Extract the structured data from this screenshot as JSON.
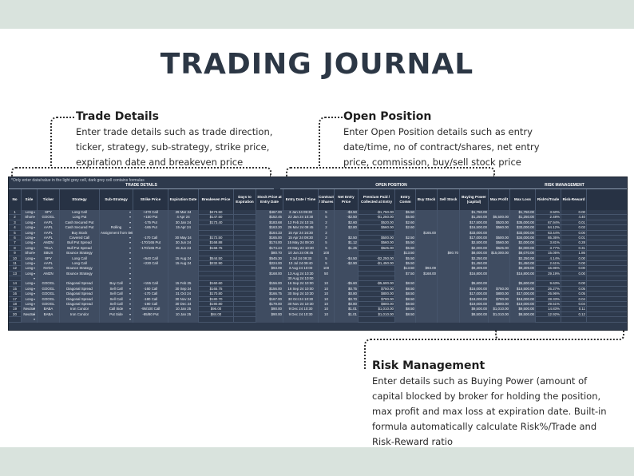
{
  "title": "TRADING JOURNAL",
  "callouts": {
    "trade_details": {
      "heading": "Trade Details",
      "lines": [
        "Enter trade details such as trade direction,",
        "ticker, strategy, sub-strategy, strike price,",
        "expiration date and breakeven price"
      ]
    },
    "open_position": {
      "heading": "Open Position",
      "lines": [
        "Enter Open Position details such as entry",
        "date/time, no of contract/shares, net entry",
        "price, commission, buy/sell stock price"
      ]
    },
    "risk_management": {
      "heading": "Risk Management",
      "lines": [
        "Enter details such as Buying Power (amount of",
        "capital blocked by broker for holding the position,",
        "max profit and max loss at expiration date.  Built-in",
        "formula automatically calculate Risk%/Trade and",
        "Risk-Reward ratio"
      ]
    }
  },
  "sheet": {
    "note": "*Only enter data/value in the light grey cell, dark grey cell contains formulas",
    "groups": [
      "TRADE DETAILS",
      "OPEN POSITION",
      "RISK MANAGEMENT"
    ],
    "headers": [
      "No",
      "Side",
      "Ticker",
      "Strategy",
      "Sub-Strategy",
      "Strike Price",
      "Expiration Date",
      "Breakeven Price",
      "Days to Expiration",
      "Stock Price at Entry Date",
      "Entry Date / Time",
      "Contract / Shares",
      "Net Entry Price",
      "Premium Paid / Collected at Entry",
      "Entry Comm",
      "Buy Stock",
      "Sell Stock",
      "Buying Power (capital)",
      "Max Profit",
      "Max Loss",
      "Risk%/Trade",
      "Risk-Reward"
    ],
    "rows": [
      [
        "1",
        "Long",
        "SPY",
        "Long Call",
        "",
        "+470 Call",
        "29 Mar 24",
        "$473.50",
        "",
        "$467.00",
        "3 Jan 24 09:30",
        "5",
        "-$3.50",
        "-$1,750.00",
        "$5.50",
        "",
        "",
        "$1,750.00",
        "",
        "$1,750.00",
        "3.50%",
        "0.00"
      ],
      [
        "2",
        "Short",
        "GOOGL",
        "Long Put",
        "",
        "+150 Put",
        "4 Apr 24",
        "$147.50",
        "",
        "$152.45",
        "22 Jan 24 10:30",
        "5",
        "-$2.50",
        "-$1,250.00",
        "$5.50",
        "",
        "",
        "$1,250.00",
        "$5,500.00",
        "$1,250.00",
        "2.48%",
        "4.40"
      ],
      [
        "3",
        "Long",
        "AAPL",
        "Cash Secured Put",
        "",
        "-175 Put",
        "30 Jan 24",
        "$173.40",
        "",
        "$183.68",
        "12 Feb 24 10:15",
        "2",
        "$2.60",
        "$520.00",
        "$2.60",
        "",
        "",
        "$17,500.00",
        "$520.00",
        "$35,000.00",
        "67.94%",
        "0.01"
      ],
      [
        "4",
        "Long",
        "AAPL",
        "Cash Secured Put",
        "Rolling",
        "-165 Put",
        "15 Apr 24",
        "",
        "",
        "$163.20",
        "26 Mar 24 09:45",
        "2",
        "$2.80",
        "$560.00",
        "$2.60",
        "",
        "",
        "$16,500.00",
        "$560.00",
        "$33,000.00",
        "64.12%",
        "0.02"
      ],
      [
        "5",
        "Long",
        "AAPL",
        "Buy Stock",
        "Assignment from CSP",
        "",
        "",
        "",
        "",
        "$164.33",
        "15 Apr 24 16:30",
        "2",
        "",
        "",
        "",
        "$165.00",
        "",
        "$33,000.00",
        "",
        "$33,000.00",
        "63.44%",
        "0.00"
      ],
      [
        "6",
        "Long",
        "AAPL",
        "Covered Call",
        "",
        "-170 Call",
        "30 May 24",
        "$172.50",
        "",
        "$165.00",
        "15 Apr 24 09:30",
        "2",
        "$2.50",
        "$500.00",
        "$2.50",
        "",
        "",
        "$17,000.00",
        "$500.00",
        "$34,000.00",
        "65.36%",
        "0.01"
      ],
      [
        "7",
        "Long",
        "AMZN",
        "Bull Put Spread",
        "",
        "-170/165 Put",
        "30 Jun 24",
        "$168.88",
        "",
        "$174.00",
        "15 May 24 09:30",
        "5",
        "$1.12",
        "$560.00",
        "$5.50",
        "",
        "",
        "$2,500.00",
        "$560.00",
        "$2,000.00",
        "3.81%",
        "0.28"
      ],
      [
        "8",
        "Long",
        "TSLA",
        "Bull Put Spread",
        "",
        "-170/165 Put",
        "15 Jun 24",
        "$168.75",
        "",
        "$174.44",
        "20 May 24 10:30",
        "5",
        "$1.25",
        "$625.00",
        "$5.50",
        "",
        "",
        "$2,000.00",
        "$625.00",
        "$2,000.00",
        "3.77%",
        "0.31"
      ],
      [
        "9",
        "Short",
        "SBUX",
        "Bounce Strategy",
        "",
        "",
        "",
        "",
        "",
        "$80.70",
        "10 Jun 24 09:45",
        "100",
        "",
        "",
        "$13.50",
        "",
        "$80.70",
        "$8,000.00",
        "$15,000.00",
        "$8,070.00",
        "15.05%",
        "1.86"
      ],
      [
        "10",
        "Long",
        "SPY",
        "Long Call",
        "",
        "+540 Call",
        "15 Aug 24",
        "$544.50",
        "",
        "$545.30",
        "3 Jul 24 09:30",
        "5",
        "-$4.50",
        "-$2,250.00",
        "$5.50",
        "",
        "",
        "$2,250.00",
        "",
        "$2,250.00",
        "4.14%",
        "0.00"
      ],
      [
        "11",
        "Long",
        "AAPL",
        "Long Call",
        "",
        "+230 Call",
        "15 Aug 24",
        "$232.90",
        "",
        "$224.00",
        "10 Jul 24 09:40",
        "5",
        "-$2.90",
        "-$1,450.00",
        "$5.50",
        "",
        "",
        "$1,450.00",
        "",
        "$1,450.00",
        "2.61%",
        "0.00"
      ],
      [
        "12",
        "Long",
        "NVDA",
        "Bounce Strategy",
        "",
        "",
        "",
        "",
        "",
        "$93.09",
        "3 Aug 24 10:00",
        "100",
        "",
        "",
        "$13.50",
        "$93.09",
        "",
        "$9,309.00",
        "",
        "$9,309.00",
        "16.96%",
        "0.00"
      ],
      [
        "13",
        "Long",
        "AMZN",
        "Bounce Strategy",
        "",
        "",
        "",
        "",
        "",
        "$168.00",
        "13 Aug 24 10:30",
        "50",
        "",
        "",
        "$7.50",
        "$168.00",
        "",
        "$16,800.00",
        "",
        "$16,800.00",
        "29.19%",
        "0.00"
      ],
      [
        "",
        "",
        "",
        "",
        "",
        "",
        "",
        "",
        "",
        "",
        "30 Aug 24 10:00",
        "",
        "",
        "",
        "",
        "",
        "",
        "",
        "",
        "",
        "",
        ""
      ],
      [
        "14",
        "Long",
        "GOOGL",
        "Diagonal Spread",
        "Buy Call",
        "+155 Call",
        "15 Feb 25",
        "$160.60",
        "",
        "$156.00",
        "16 Sep 24 10:00",
        "10",
        "-$5.60",
        "-$5,600.00",
        "$8.50",
        "",
        "",
        "$5,600.00",
        "",
        "$5,600.00",
        "9.63%",
        "0.00"
      ],
      [
        "15",
        "Long",
        "GOOGL",
        "Diagonal Spread",
        "Sell Call",
        "-160 Call",
        "30 Sep 24",
        "$165.75",
        "",
        "$156.00",
        "16 Sep 24 10:00",
        "10",
        "$0.75",
        "$750.00",
        "$8.50",
        "",
        "",
        "$16,000.00",
        "$750.00",
        "$16,500.00",
        "26.27%",
        "0.05"
      ],
      [
        "16",
        "Long",
        "GOOGL",
        "Diagonal Spread",
        "Sell Call",
        "-170 Call",
        "31 Oct 24",
        "$170.80",
        "",
        "$166.75",
        "30 Sep 24 10:30",
        "10",
        "$0.80",
        "$800.00",
        "$8.50",
        "",
        "",
        "$17,000.00",
        "$800.00",
        "$17,000.00",
        "26.96%",
        "0.05"
      ],
      [
        "17",
        "Long",
        "GOOGL",
        "Diagonal Spread",
        "Sell Call",
        "-180 Call",
        "30 Nov 24",
        "$180.70",
        "",
        "$167.00",
        "30 Oct 24 10:30",
        "10",
        "$0.70",
        "$700.00",
        "$8.50",
        "",
        "",
        "$18,000.00",
        "$700.00",
        "$18,000.00",
        "28.33%",
        "0.04"
      ],
      [
        "18",
        "Long",
        "GOOGL",
        "Diagonal Spread",
        "Sell Call",
        "-190 Call",
        "30 Dec 24",
        "$190.80",
        "",
        "$179.00",
        "30 Nov 24 10:30",
        "10",
        "$0.80",
        "$800.00",
        "$8.50",
        "",
        "",
        "$19,000.00",
        "$800.00",
        "$19,000.00",
        "29.51%",
        "0.04"
      ],
      [
        "19",
        "Neutral",
        "BABA",
        "Iron Condor",
        "Call Side",
        "-95/100 Call",
        "10 Jan 25",
        "$96.00",
        "",
        "$90.00",
        "9 Dec 24 10:30",
        "10",
        "$1.01",
        "$1,010.00",
        "$8.50",
        "",
        "",
        "$9,500.00",
        "$1,010.00",
        "$9,500.00",
        "14.83%",
        "0.11"
      ],
      [
        "20",
        "Neutral",
        "BABA",
        "Iron Condor",
        "Put Side",
        "-85/80 Put",
        "10 Jan 25",
        "$84.00",
        "",
        "$90.00",
        "9 Dec 24 10:30",
        "10",
        "$1.01",
        "$1,010.00",
        "$8.50",
        "",
        "",
        "$8,500.00",
        "$1,010.00",
        "$8,500.00",
        "12.92%",
        "0.12"
      ],
      [
        "",
        "",
        "",
        "",
        "",
        "",
        "",
        "",
        "",
        "",
        "",
        "",
        "",
        "",
        "",
        "",
        "",
        "",
        "",
        "",
        "",
        ""
      ]
    ]
  }
}
